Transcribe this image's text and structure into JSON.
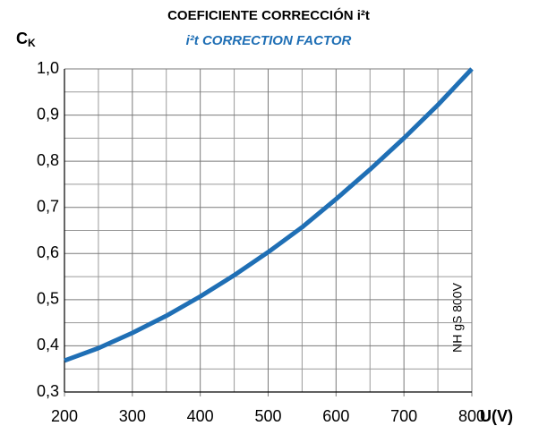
{
  "chart_data": {
    "type": "line",
    "title": "COEFICIENTE CORRECCIÓN i²t",
    "subtitle": "i²t CORRECTION FACTOR",
    "ylabel": {
      "main": "C",
      "sub": "K"
    },
    "xlabel": "U(V)",
    "annotation": "NH gS 800V",
    "x": [
      200,
      250,
      300,
      350,
      400,
      450,
      500,
      550,
      600,
      650,
      700,
      750,
      800
    ],
    "series": [
      {
        "name": "NH gS 800V",
        "color": "#1f6fb5",
        "values": [
          0.368,
          0.395,
          0.428,
          0.465,
          0.507,
          0.553,
          0.603,
          0.657,
          0.718,
          0.782,
          0.85,
          0.922,
          1.0
        ]
      }
    ],
    "xlim": [
      200,
      800
    ],
    "ylim": [
      0.3,
      1.0
    ],
    "xticks": [
      200,
      300,
      400,
      500,
      600,
      700,
      800
    ],
    "yticks": [
      {
        "value": 0.3,
        "label": "0,3"
      },
      {
        "value": 0.4,
        "label": "0,4"
      },
      {
        "value": 0.5,
        "label": "0,5"
      },
      {
        "value": 0.6,
        "label": "0,6"
      },
      {
        "value": 0.7,
        "label": "0,7"
      },
      {
        "value": 0.8,
        "label": "0,8"
      },
      {
        "value": 0.9,
        "label": "0,9"
      },
      {
        "value": 1.0,
        "label": "1,0"
      }
    ],
    "x_gridlines": [
      250,
      350,
      450,
      550,
      650,
      750
    ],
    "y_gridlines": [
      0.35,
      0.45,
      0.55,
      0.65,
      0.75,
      0.85,
      0.95
    ],
    "grid": true
  }
}
